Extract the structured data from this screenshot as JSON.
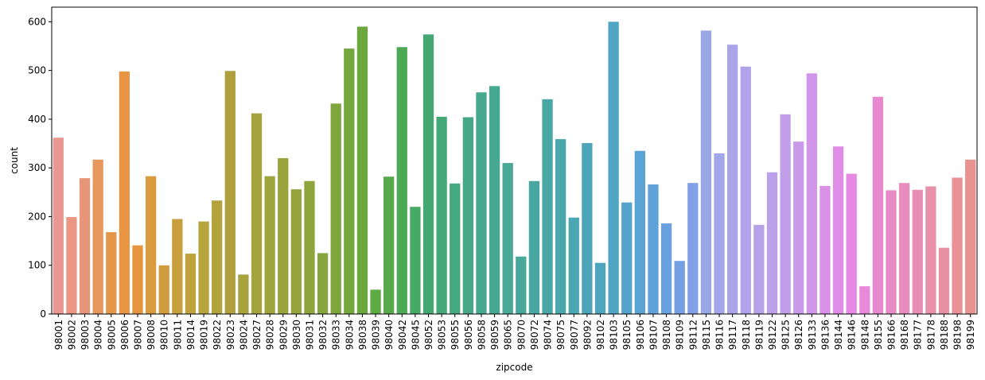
{
  "chart_data": {
    "type": "bar",
    "xlabel": "zipcode",
    "ylabel": "count",
    "ylim": [
      0,
      630
    ],
    "yticks": [
      0,
      100,
      200,
      300,
      400,
      500,
      600
    ],
    "grid": false,
    "legend": "none",
    "categories": [
      "98001",
      "98002",
      "98003",
      "98004",
      "98005",
      "98006",
      "98007",
      "98008",
      "98010",
      "98011",
      "98014",
      "98019",
      "98022",
      "98023",
      "98024",
      "98027",
      "98028",
      "98029",
      "98030",
      "98031",
      "98032",
      "98033",
      "98034",
      "98038",
      "98039",
      "98040",
      "98042",
      "98045",
      "98052",
      "98053",
      "98055",
      "98056",
      "98058",
      "98059",
      "98065",
      "98070",
      "98072",
      "98074",
      "98075",
      "98077",
      "98092",
      "98102",
      "98103",
      "98105",
      "98106",
      "98107",
      "98108",
      "98109",
      "98112",
      "98115",
      "98116",
      "98117",
      "98118",
      "98119",
      "98122",
      "98125",
      "98126",
      "98133",
      "98136",
      "98144",
      "98146",
      "98148",
      "98155",
      "98166",
      "98168",
      "98177",
      "98178",
      "98188",
      "98198",
      "98199"
    ],
    "values": [
      362,
      199,
      279,
      317,
      168,
      498,
      141,
      283,
      100,
      195,
      124,
      190,
      233,
      499,
      81,
      412,
      283,
      320,
      256,
      273,
      125,
      432,
      545,
      590,
      50,
      282,
      548,
      220,
      574,
      405,
      268,
      404,
      455,
      468,
      310,
      118,
      273,
      441,
      359,
      198,
      351,
      105,
      600,
      229,
      335,
      266,
      186,
      109,
      269,
      582,
      330,
      553,
      508,
      183,
      291,
      410,
      354,
      494,
      263,
      344,
      288,
      57,
      446,
      254,
      269,
      255,
      262,
      136,
      280,
      317
    ],
    "colors": [
      "#ea9691",
      "#ea9682",
      "#e8967a",
      "#e6975e",
      "#e4984b",
      "#e89644",
      "#e49540",
      "#d99b3d",
      "#d19c3d",
      "#c89f3d",
      "#c0a33d",
      "#b8a53d",
      "#b4a23d",
      "#b09f3d",
      "#a8a33d",
      "#a4a33d",
      "#9fa43d",
      "#9aa43d",
      "#95a43d",
      "#8ea43d",
      "#85a63d",
      "#7ea63c",
      "#74a73c",
      "#6ba73c",
      "#5eaa43",
      "#56aa4c",
      "#4ca956",
      "#46a964",
      "#44a873",
      "#44a879",
      "#45a87f",
      "#46a886",
      "#46a88c",
      "#47a891",
      "#47a896",
      "#48a89c",
      "#48a8a1",
      "#49a7a6",
      "#4aa7ac",
      "#4ba7b2",
      "#4ca6b8",
      "#4da6bd",
      "#4ea5c4",
      "#55a4cc",
      "#5aa3d4",
      "#5fa2da",
      "#68a0e0",
      "#749fe3",
      "#82a0e6",
      "#9aa8e8",
      "#a3a6e8",
      "#aba4e8",
      "#b1a3e9",
      "#b6a2e9",
      "#bca1e9",
      "#c29ee9",
      "#c99ae9",
      "#d195e9",
      "#d991e8",
      "#e08de7",
      "#e689e4",
      "#e889dc",
      "#e889d0",
      "#e88ac6",
      "#e88cbd",
      "#e88db4",
      "#e88faa",
      "#e890a1",
      "#e89298",
      "#e89390"
    ]
  }
}
